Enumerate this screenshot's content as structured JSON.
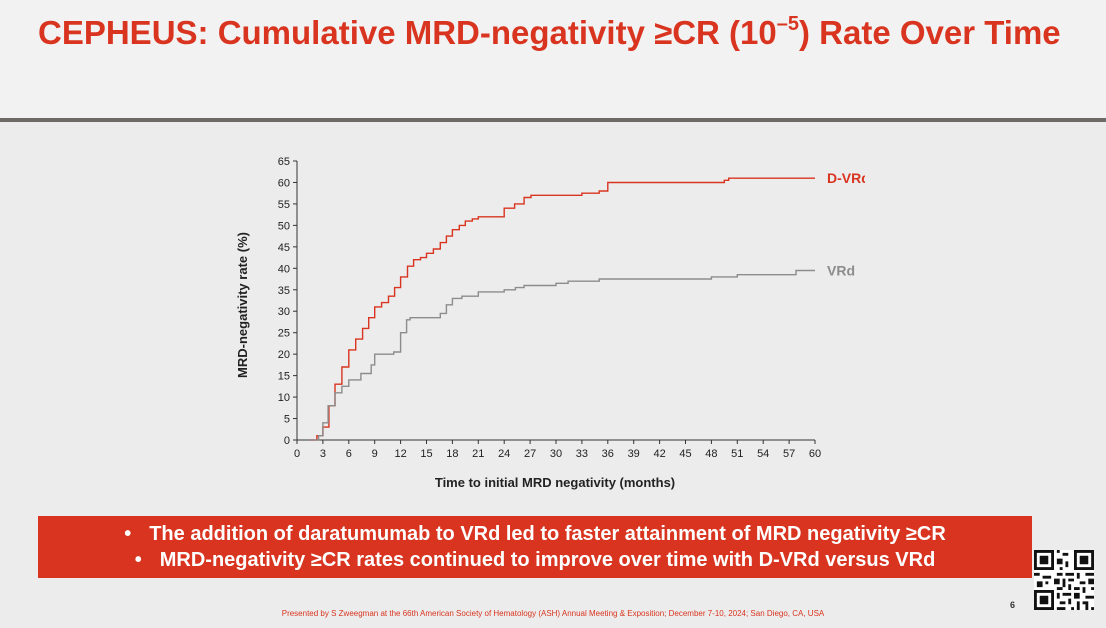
{
  "header": {
    "title_pre": "CEPHEUS: Cumulative MRD-negativity ≥CR (10",
    "title_sup": "–5",
    "title_post": ") Rate Over Time"
  },
  "chart_data": {
    "type": "line",
    "xlabel": "Time to initial MRD negativity (months)",
    "ylabel": "MRD-negativity rate (%)",
    "xlim": [
      0,
      60
    ],
    "ylim": [
      0,
      65
    ],
    "xticks": [
      0,
      3,
      6,
      9,
      12,
      15,
      18,
      21,
      24,
      27,
      30,
      33,
      36,
      39,
      42,
      45,
      48,
      51,
      54,
      57,
      60
    ],
    "yticks": [
      0,
      5,
      10,
      15,
      20,
      25,
      30,
      35,
      40,
      45,
      50,
      55,
      60,
      65
    ],
    "series": [
      {
        "name": "D-VRd",
        "color": "#d9341f",
        "x": [
          1.5,
          2.3,
          3,
          3.7,
          4.4,
          5.2,
          6,
          6.8,
          7.6,
          8.3,
          9,
          9.8,
          10.6,
          11.3,
          12,
          12.8,
          13.5,
          14.3,
          15,
          15.8,
          16.6,
          17.3,
          18,
          18.8,
          19.5,
          20.3,
          21,
          23.4,
          24,
          25.2,
          26.3,
          27.1,
          30,
          33,
          35,
          36,
          37,
          48,
          49.5,
          50,
          55,
          60
        ],
        "y": [
          0,
          1,
          3,
          8,
          13,
          17,
          21,
          23.5,
          26,
          28.5,
          31,
          32,
          33.5,
          35.5,
          38,
          40.5,
          42,
          42.5,
          43.5,
          44.5,
          46,
          47.5,
          49,
          50,
          51,
          51.5,
          52,
          52,
          54,
          55,
          56.5,
          57,
          57,
          57.5,
          58,
          60,
          60,
          60,
          60.5,
          61,
          61,
          61
        ]
      },
      {
        "name": "VRd",
        "color": "#8c8c8c",
        "x": [
          1.5,
          2.5,
          3,
          3.6,
          4.4,
          5.2,
          6,
          7.4,
          8.6,
          9,
          10.2,
          11.2,
          12,
          12.7,
          13.1,
          14.2,
          15.4,
          16.6,
          17.3,
          18,
          19.1,
          21,
          22.8,
          24,
          25.3,
          26.3,
          28.8,
          30,
          31.4,
          35,
          37,
          40,
          46,
          48,
          49,
          51,
          57,
          57.8,
          59,
          60
        ],
        "y": [
          0,
          1,
          4,
          8,
          11,
          12.5,
          14,
          15.5,
          17.5,
          20,
          20,
          20.5,
          25,
          28,
          28.5,
          28.5,
          28.5,
          29.5,
          31.5,
          33,
          33.5,
          34.5,
          34.5,
          35,
          35.5,
          36,
          36,
          36.5,
          37,
          37.5,
          37.5,
          37.5,
          37.5,
          38,
          38,
          38.5,
          38.5,
          39.5,
          39.5,
          39.5
        ]
      }
    ]
  },
  "bullets": [
    "The addition of daratumumab to VRd led to faster attainment of MRD negativity ≥CR",
    "MRD-negativity ≥CR rates continued to improve over time with D-VRd versus VRd"
  ],
  "footer": "Presented by S Zweegman at the 66th American Society of Hematology (ASH) Annual Meeting & Exposition; December 7-10, 2024; San Diego, CA, USA",
  "page_number": "6"
}
